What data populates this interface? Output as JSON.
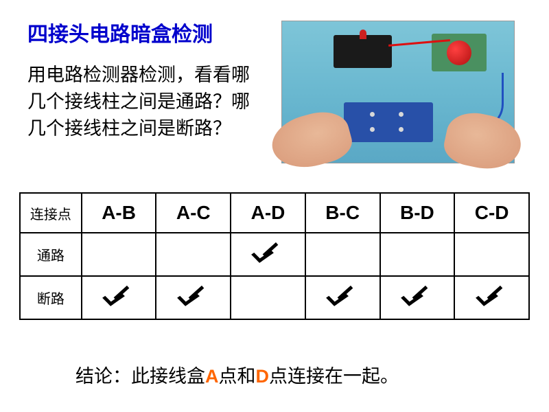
{
  "title": "四接头电路暗盒检测",
  "description": "用电路检测器检测，看看哪几个接线柱之间是通路？哪几个接线柱之间是断路？",
  "table": {
    "corner_label": "连接点",
    "columns": [
      "A-B",
      "A-C",
      "A-D",
      "B-C",
      "B-D",
      "C-D"
    ],
    "rows": [
      {
        "label": "通路",
        "key": "connected"
      },
      {
        "label": "断路",
        "key": "broken"
      }
    ],
    "checkmarks": {
      "connected": [
        false,
        false,
        true,
        false,
        false,
        false
      ],
      "broken": [
        true,
        true,
        false,
        true,
        true,
        true
      ]
    },
    "border_color": "#000000",
    "column_font_family": "Arial",
    "column_font_size": 28,
    "label_font_size": 20
  },
  "conclusion": {
    "prefix": "结论：此接线盒",
    "highlight1": "A",
    "mid1": "点和",
    "highlight2": "D",
    "mid2": "点",
    "suffix": "连接在一起。",
    "highlight_color": "#ff6600"
  },
  "colors": {
    "title_color": "#0000cc",
    "text_color": "#000000",
    "background": "#ffffff",
    "photo_bg": "#6ab8d0"
  },
  "typography": {
    "title_fontsize": 30,
    "body_fontsize": 27
  }
}
